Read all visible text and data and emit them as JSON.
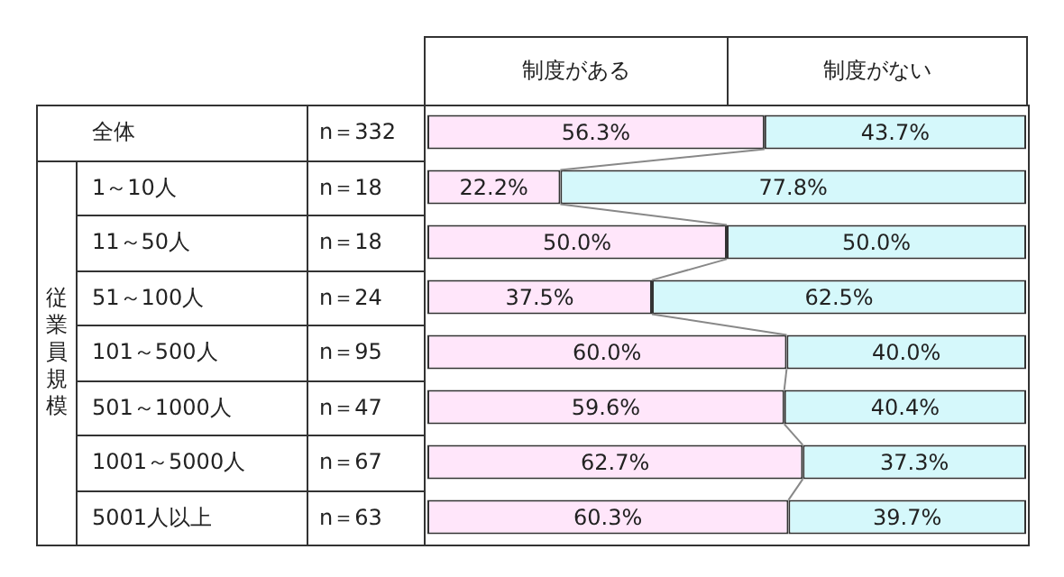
{
  "chart_data": {
    "type": "bar",
    "orientation": "horizontal",
    "stacked": true,
    "categories": [
      "全体",
      "1～10人",
      "11～50人",
      "51～100人",
      "101～500人",
      "501～1000人",
      "1001～5000人",
      "5001人以上"
    ],
    "series": [
      {
        "name": "制度がある",
        "color": "#ffe6fa",
        "values": [
          56.3,
          22.2,
          50.0,
          37.5,
          60.0,
          59.6,
          62.7,
          60.3
        ],
        "value_labels": [
          "56.3%",
          "22.2%",
          "50.0%",
          "37.5%",
          "60.0%",
          "59.6%",
          "62.7%",
          "60.3%"
        ]
      },
      {
        "name": "制度がない",
        "color": "#d5f8fb",
        "values": [
          43.7,
          77.8,
          50.0,
          62.5,
          40.0,
          40.4,
          37.3,
          39.7
        ],
        "value_labels": [
          "43.7%",
          "77.8%",
          "50.0%",
          "62.5%",
          "40.0%",
          "40.4%",
          "37.3%",
          "39.7%"
        ]
      }
    ],
    "xlim": [
      0,
      100
    ],
    "tick_labels": "y",
    "legend": false,
    "annotations": [
      "従業員規模",
      "n＝332",
      "n＝18",
      "n＝18",
      "n＝24",
      "n＝95",
      "n＝47",
      "n＝67",
      "n＝63"
    ]
  }
}
